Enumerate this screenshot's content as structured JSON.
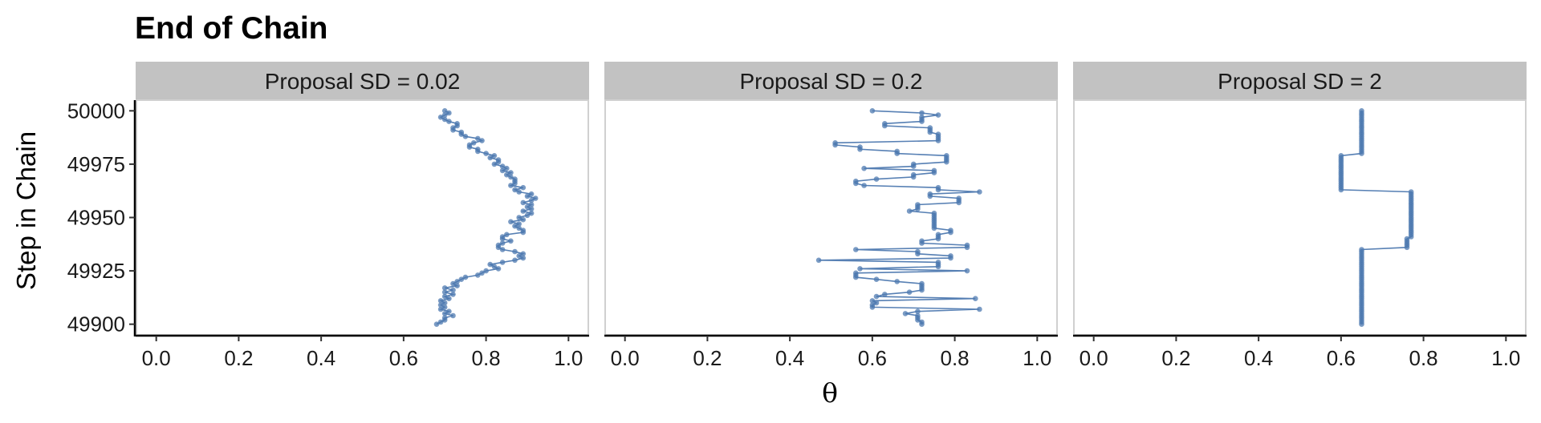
{
  "chart_data": {
    "type": "line",
    "title": "End of Chain",
    "xlabel": "θ",
    "ylabel": "Step in Chain",
    "xlim": [
      -0.05,
      1.05
    ],
    "xticks": [
      0.0,
      0.2,
      0.4,
      0.6,
      0.8,
      1.0
    ],
    "xtick_labels": [
      "0.0",
      "0.2",
      "0.4",
      "0.6",
      "0.8",
      "1.0"
    ],
    "ylim": [
      49895,
      50005
    ],
    "yticks": [
      49900,
      49925,
      49950,
      49975,
      50000
    ],
    "ytick_labels": [
      "49900",
      "49925",
      "49950",
      "49975",
      "50000"
    ],
    "series_color": "#4E79B0",
    "panels": [
      {
        "label": "Proposal SD = 0.02",
        "steps_start": 49900,
        "theta": [
          0.68,
          0.69,
          0.7,
          0.7,
          0.72,
          0.7,
          0.71,
          0.69,
          0.7,
          0.69,
          0.7,
          0.69,
          0.71,
          0.7,
          0.72,
          0.7,
          0.72,
          0.7,
          0.73,
          0.72,
          0.73,
          0.74,
          0.75,
          0.78,
          0.79,
          0.8,
          0.83,
          0.82,
          0.81,
          0.84,
          0.87,
          0.89,
          0.88,
          0.89,
          0.87,
          0.84,
          0.83,
          0.83,
          0.84,
          0.86,
          0.84,
          0.84,
          0.85,
          0.89,
          0.89,
          0.88,
          0.87,
          0.88,
          0.86,
          0.89,
          0.88,
          0.9,
          0.91,
          0.89,
          0.91,
          0.9,
          0.91,
          0.89,
          0.91,
          0.92,
          0.9,
          0.91,
          0.88,
          0.87,
          0.89,
          0.86,
          0.87,
          0.87,
          0.87,
          0.86,
          0.85,
          0.86,
          0.84,
          0.85,
          0.84,
          0.82,
          0.83,
          0.83,
          0.81,
          0.82,
          0.8,
          0.78,
          0.78,
          0.76,
          0.76,
          0.77,
          0.79,
          0.78,
          0.75,
          0.74,
          0.74,
          0.72,
          0.72,
          0.73,
          0.73,
          0.71,
          0.7,
          0.69,
          0.7,
          0.71,
          0.7
        ]
      },
      {
        "label": "Proposal SD = 0.2",
        "steps_start": 49900,
        "theta": [
          0.72,
          0.72,
          0.71,
          0.71,
          0.71,
          0.68,
          0.71,
          0.86,
          0.6,
          0.6,
          0.61,
          0.6,
          0.85,
          0.61,
          0.63,
          0.69,
          0.72,
          0.72,
          0.72,
          0.72,
          0.66,
          0.61,
          0.56,
          0.56,
          0.56,
          0.83,
          0.57,
          0.76,
          0.76,
          0.76,
          0.47,
          0.79,
          0.79,
          0.71,
          0.71,
          0.56,
          0.83,
          0.83,
          0.72,
          0.72,
          0.76,
          0.76,
          0.76,
          0.79,
          0.79,
          0.75,
          0.75,
          0.75,
          0.75,
          0.75,
          0.75,
          0.75,
          0.75,
          0.69,
          0.71,
          0.71,
          0.71,
          0.81,
          0.81,
          0.81,
          0.74,
          0.74,
          0.86,
          0.76,
          0.76,
          0.58,
          0.56,
          0.56,
          0.61,
          0.7,
          0.7,
          0.75,
          0.75,
          0.58,
          0.7,
          0.7,
          0.78,
          0.78,
          0.78,
          0.78,
          0.66,
          0.66,
          0.57,
          0.57,
          0.51,
          0.51,
          0.76,
          0.76,
          0.76,
          0.76,
          0.74,
          0.74,
          0.74,
          0.63,
          0.63,
          0.72,
          0.72,
          0.72,
          0.76,
          0.72,
          0.6
        ]
      },
      {
        "label": "Proposal SD = 2",
        "steps_start": 49900,
        "theta": [
          0.65,
          0.65,
          0.65,
          0.65,
          0.65,
          0.65,
          0.65,
          0.65,
          0.65,
          0.65,
          0.65,
          0.65,
          0.65,
          0.65,
          0.65,
          0.65,
          0.65,
          0.65,
          0.65,
          0.65,
          0.65,
          0.65,
          0.65,
          0.65,
          0.65,
          0.65,
          0.65,
          0.65,
          0.65,
          0.65,
          0.65,
          0.65,
          0.65,
          0.65,
          0.65,
          0.65,
          0.76,
          0.76,
          0.76,
          0.76,
          0.76,
          0.77,
          0.77,
          0.77,
          0.77,
          0.77,
          0.77,
          0.77,
          0.77,
          0.77,
          0.77,
          0.77,
          0.77,
          0.77,
          0.77,
          0.77,
          0.77,
          0.77,
          0.77,
          0.77,
          0.77,
          0.77,
          0.77,
          0.6,
          0.6,
          0.6,
          0.6,
          0.6,
          0.6,
          0.6,
          0.6,
          0.6,
          0.6,
          0.6,
          0.6,
          0.6,
          0.6,
          0.6,
          0.6,
          0.6,
          0.65,
          0.65,
          0.65,
          0.65,
          0.65,
          0.65,
          0.65,
          0.65,
          0.65,
          0.65,
          0.65,
          0.65,
          0.65,
          0.65,
          0.65,
          0.65,
          0.65,
          0.65,
          0.65,
          0.65,
          0.65
        ]
      }
    ]
  }
}
